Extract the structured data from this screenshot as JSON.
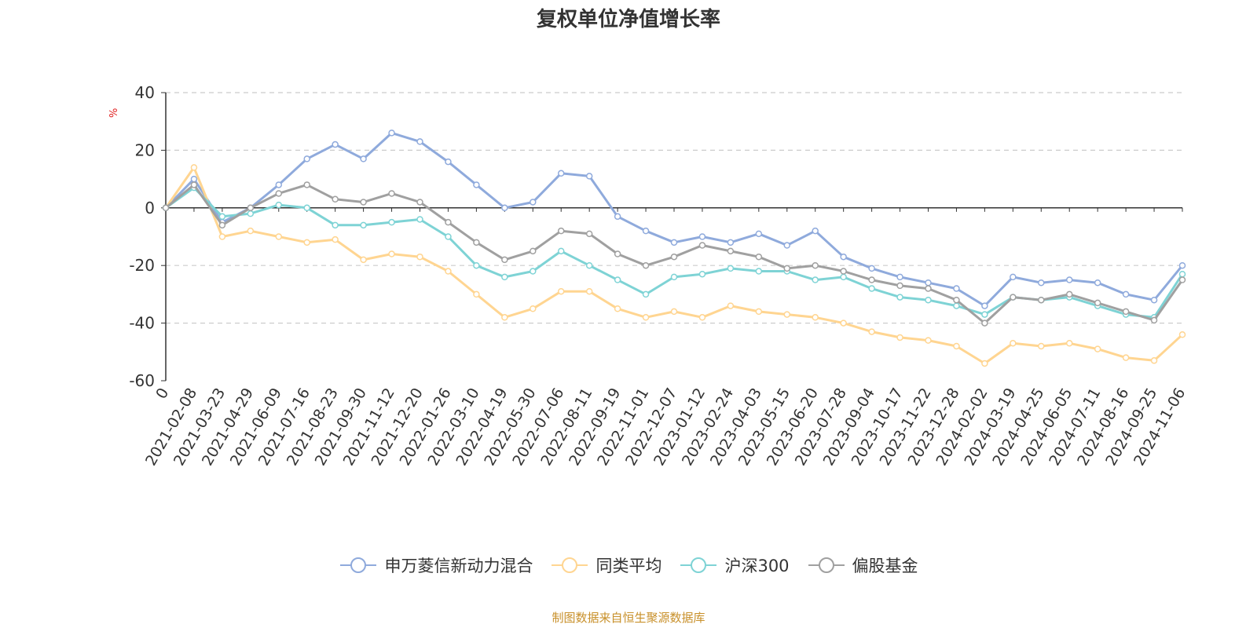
{
  "chart_data": {
    "type": "line",
    "title": "复权单位净值增长率",
    "ylabel": "%",
    "xlabel": "",
    "ylim": [
      -60,
      40
    ],
    "yticks": [
      40,
      20,
      0,
      -20,
      -40,
      -60
    ],
    "grid": true,
    "legend_position": "bottom-center",
    "x_tick_labels": [
      "0",
      "2021-02-08",
      "2021-03-23",
      "2021-04-29",
      "2021-06-09",
      "2021-07-16",
      "2021-08-23",
      "2021-09-30",
      "2021-11-12",
      "2021-12-20",
      "2022-01-26",
      "2022-03-10",
      "2022-04-19",
      "2022-05-30",
      "2022-07-06",
      "2022-08-11",
      "2022-09-19",
      "2022-11-01",
      "2022-12-07",
      "2023-01-12",
      "2023-02-24",
      "2023-04-03",
      "2023-05-15",
      "2023-06-20",
      "2023-07-28",
      "2023-09-04",
      "2023-10-17",
      "2023-11-22",
      "2023-12-28",
      "2024-02-02",
      "2024-03-19",
      "2024-04-25",
      "2024-06-05",
      "2024-07-11",
      "2024-08-16",
      "2024-09-25",
      "2024-11-06"
    ],
    "series": [
      {
        "name": "申万菱信新动力混合",
        "color": "#8faadc",
        "values": [
          0,
          10,
          -5,
          0,
          8,
          17,
          22,
          17,
          26,
          23,
          16,
          8,
          0,
          2,
          12,
          11,
          -3,
          -8,
          -12,
          -10,
          -12,
          -9,
          -13,
          -8,
          -17,
          -21,
          -24,
          -26,
          -28,
          -34,
          -24,
          -26,
          -25,
          -26,
          -30,
          -32,
          -20
        ]
      },
      {
        "name": "同类平均",
        "color": "#ffd591",
        "values": [
          0,
          14,
          -10,
          -8,
          -10,
          -12,
          -11,
          -18,
          -16,
          -17,
          -22,
          -30,
          -38,
          -35,
          -29,
          -29,
          -35,
          -38,
          -36,
          -38,
          -34,
          -36,
          -37,
          -38,
          -40,
          -43,
          -45,
          -46,
          -48,
          -54,
          -47,
          -48,
          -47,
          -49,
          -52,
          -53,
          -44
        ]
      },
      {
        "name": "沪深300",
        "color": "#7ed3d5",
        "values": [
          0,
          7,
          -3,
          -2,
          1,
          0,
          -6,
          -6,
          -5,
          -4,
          -10,
          -20,
          -24,
          -22,
          -15,
          -20,
          -25,
          -30,
          -24,
          -23,
          -21,
          -22,
          -22,
          -25,
          -24,
          -28,
          -31,
          -32,
          -34,
          -37,
          -31,
          -32,
          -31,
          -34,
          -37,
          -38,
          -23
        ]
      },
      {
        "name": "偏股基金",
        "color": "#a0a0a0",
        "values": [
          0,
          8,
          -6,
          0,
          5,
          8,
          3,
          2,
          5,
          2,
          -5,
          -12,
          -18,
          -15,
          -8,
          -9,
          -16,
          -20,
          -17,
          -13,
          -15,
          -17,
          -21,
          -20,
          -22,
          -25,
          -27,
          -28,
          -32,
          -40,
          -31,
          -32,
          -30,
          -33,
          -36,
          -39,
          -25
        ]
      }
    ]
  },
  "source_text": "制图数据来自恒生聚源数据库"
}
